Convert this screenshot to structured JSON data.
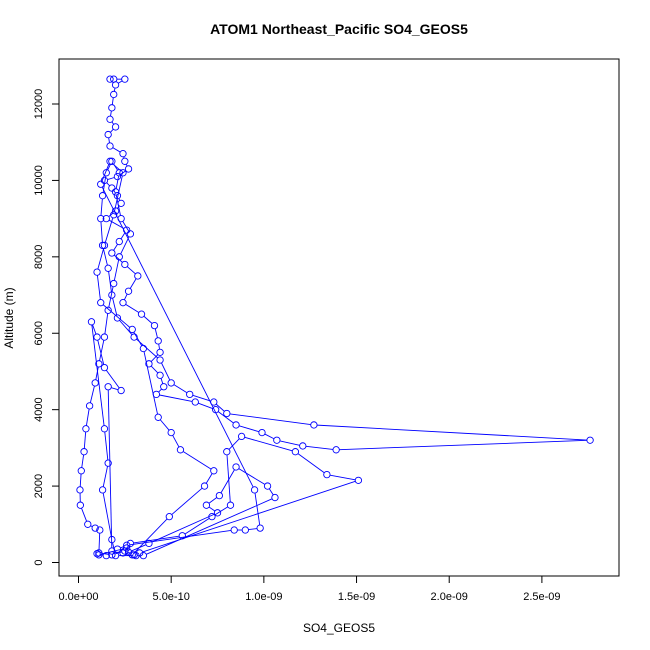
{
  "chart_data": {
    "type": "line",
    "title": "ATOM1 Northeast_Pacific SO4_GEOS5",
    "xlabel": "SO4_GEOS5",
    "ylabel": "Altitude (m)",
    "xlim": [
      0,
      2.8e-09
    ],
    "ylim": [
      -200,
      12800
    ],
    "xticks": [
      0,
      5e-10,
      1e-09,
      1.5e-09,
      2e-09,
      2.5e-09
    ],
    "xtick_labels": [
      "0.0e+00",
      "5.0e-10",
      "1.0e-09",
      "1.5e-09",
      "2.0e-09",
      "2.5e-09"
    ],
    "yticks": [
      0,
      2000,
      4000,
      6000,
      8000,
      10000,
      12000
    ],
    "ytick_labels": [
      "0",
      "2000",
      "4000",
      "6000",
      "8000",
      "10000",
      "12000"
    ],
    "grid": false,
    "marker": "open-circle",
    "series_color": "#0000ff",
    "series": [
      {
        "points": [
          [
            1.7e-10,
            12650
          ],
          [
            1.9e-10,
            12650
          ],
          [
            2.5e-10,
            12650
          ],
          [
            2e-10,
            12500
          ],
          [
            1.9e-10,
            12250
          ],
          [
            1.8e-10,
            11900
          ],
          [
            1.7e-10,
            11600
          ],
          [
            2e-10,
            11400
          ],
          [
            1.6e-10,
            11200
          ],
          [
            1.7e-10,
            10900
          ],
          [
            2.4e-10,
            10700
          ],
          [
            2.5e-10,
            10500
          ],
          [
            2.7e-10,
            10300
          ],
          [
            2.1e-10,
            10100
          ],
          [
            1.4e-10,
            10000
          ],
          [
            1.8e-10,
            9800
          ],
          [
            2.1e-10,
            9600
          ],
          [
            2.3e-10,
            9400
          ],
          [
            2e-10,
            9200
          ],
          [
            1.5e-10,
            9000
          ],
          [
            2.6e-10,
            8700
          ],
          [
            2.2e-10,
            8400
          ],
          [
            1.8e-10,
            8100
          ],
          [
            2.5e-10,
            7800
          ],
          [
            3.2e-10,
            7500
          ],
          [
            2.7e-10,
            7100
          ],
          [
            2.4e-10,
            6800
          ],
          [
            3.4e-10,
            6500
          ],
          [
            4.1e-10,
            6200
          ],
          [
            4.3e-10,
            5800
          ],
          [
            4.4e-10,
            5500
          ],
          [
            3.8e-10,
            5200
          ],
          [
            4.4e-10,
            4900
          ],
          [
            4.6e-10,
            4600
          ],
          [
            4.2e-10,
            4400
          ],
          [
            6.3e-10,
            4200
          ],
          [
            7.4e-10,
            4000
          ],
          [
            8.5e-10,
            3600
          ],
          [
            9.9e-10,
            3400
          ],
          [
            1.07e-09,
            3200
          ],
          [
            1.21e-09,
            3050
          ],
          [
            1.39e-09,
            2950
          ],
          [
            2.76e-09,
            3200
          ],
          [
            1.27e-09,
            3600
          ],
          [
            8e-10,
            3900
          ],
          [
            7.3e-10,
            4200
          ],
          [
            6e-10,
            4400
          ],
          [
            5e-10,
            4700
          ],
          [
            4.4e-10,
            5300
          ],
          [
            3e-10,
            5900
          ],
          [
            2.1e-10,
            6400
          ],
          [
            1.8e-10,
            7000
          ],
          [
            1.6e-10,
            7700
          ],
          [
            1.3e-10,
            8300
          ],
          [
            1.2e-10,
            9000
          ],
          [
            1.3e-10,
            9600
          ],
          [
            1.5e-10,
            10200
          ],
          [
            1.8e-10,
            10500
          ],
          [
            2.2e-10,
            10200
          ],
          [
            2e-10,
            9700
          ],
          [
            2.3e-10,
            9000
          ],
          [
            2.8e-10,
            8600
          ],
          [
            2.2e-10,
            8000
          ],
          [
            1.9e-10,
            7300
          ],
          [
            1.6e-10,
            6600
          ],
          [
            1.4e-10,
            5900
          ],
          [
            1.1e-10,
            5200
          ],
          [
            9e-11,
            4700
          ],
          [
            6e-11,
            4100
          ],
          [
            4e-11,
            3500
          ],
          [
            3e-11,
            2900
          ],
          [
            1.5e-11,
            2400
          ],
          [
            8e-12,
            1900
          ],
          [
            1e-11,
            1500
          ],
          [
            5e-11,
            1000
          ],
          [
            9e-11,
            900
          ],
          [
            1.15e-10,
            850
          ],
          [
            1.1e-10,
            250
          ],
          [
            1.8e-10,
            200
          ],
          [
            2.5e-10,
            300
          ],
          [
            3e-10,
            200
          ],
          [
            3.3e-10,
            250
          ],
          [
            1.51e-09,
            2150
          ],
          [
            1.34e-09,
            2300
          ],
          [
            1.17e-09,
            2900
          ],
          [
            8.8e-10,
            3300
          ],
          [
            8e-10,
            2900
          ],
          [
            8.2e-10,
            1500
          ],
          [
            7.2e-10,
            1200
          ],
          [
            5.6e-10,
            700
          ],
          [
            2.8e-10,
            500
          ],
          [
            2.4e-10,
            250
          ],
          [
            2.9e-10,
            200
          ],
          [
            4.9e-10,
            1200
          ],
          [
            6.8e-10,
            2000
          ],
          [
            7.3e-10,
            2400
          ],
          [
            5.5e-10,
            2950
          ],
          [
            5e-10,
            3400
          ],
          [
            4.3e-10,
            3800
          ],
          [
            3.5e-10,
            5600
          ],
          [
            2.9e-10,
            6100
          ],
          [
            1.2e-10,
            6800
          ],
          [
            1e-10,
            7600
          ],
          [
            1.4e-10,
            8300
          ],
          [
            1.9e-10,
            9100
          ],
          [
            2.4e-10,
            10200
          ],
          [
            1.7e-10,
            10500
          ],
          [
            1.2e-10,
            9900
          ],
          [
            9.5e-10,
            1900
          ],
          [
            9.8e-10,
            900
          ],
          [
            9e-10,
            850
          ],
          [
            8.4e-10,
            850
          ],
          [
            2.6e-10,
            450
          ],
          [
            2.1e-10,
            350
          ],
          [
            1.8e-10,
            300
          ],
          [
            1.6e-10,
            4600
          ],
          [
            2.3e-10,
            4500
          ],
          [
            1.4e-10,
            5100
          ],
          [
            1e-10,
            5900
          ],
          [
            7e-11,
            6300
          ],
          [
            1.4e-10,
            3500
          ],
          [
            1.6e-10,
            2600
          ],
          [
            1.3e-10,
            1900
          ],
          [
            1.8e-10,
            600
          ],
          [
            2e-10,
            180
          ],
          [
            3.1e-10,
            180
          ],
          [
            3.5e-10,
            180
          ],
          [
            1.06e-09,
            1700
          ],
          [
            1.02e-09,
            2000
          ],
          [
            8.5e-10,
            2500
          ],
          [
            7.6e-10,
            1750
          ],
          [
            6.9e-10,
            1500
          ],
          [
            7.5e-10,
            1300
          ],
          [
            3.8e-10,
            500
          ],
          [
            2.7e-10,
            270
          ],
          [
            2.6e-10,
            380
          ],
          [
            1.1e-10,
            200
          ],
          [
            1e-10,
            230
          ],
          [
            1.5e-10,
            180
          ]
        ]
      }
    ]
  }
}
